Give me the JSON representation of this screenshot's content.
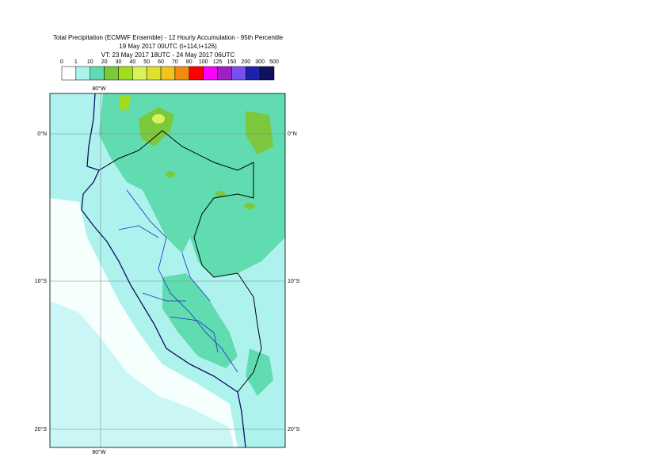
{
  "header": {
    "title": "Total Precipitation (ECMWF Ensemble) - 12 Hourly Accumulation - 95th Percentile",
    "run": "19 May 2017 00UTC (t+114,t+126)",
    "valid": "VT: 23 May 2017 18UTC - 24 May 2017 06UTC"
  },
  "legend": {
    "labels": [
      "0",
      "1",
      "10",
      "20",
      "30",
      "40",
      "50",
      "60",
      "70",
      "80",
      "100",
      "125",
      "150",
      "200",
      "300",
      "500"
    ],
    "colors": [
      "#ffffff",
      "#aef2ee",
      "#60dcb0",
      "#7cc83c",
      "#9ede1e",
      "#d8f25a",
      "#dfe030",
      "#f2c41c",
      "#f58a12",
      "#ff0000",
      "#ff00ff",
      "#a020c8",
      "#7850f0",
      "#2020b0",
      "#101060"
    ]
  },
  "map": {
    "lon_label": "80°W",
    "lat_labels": [
      "0°N",
      "10°S",
      "20°S"
    ]
  }
}
